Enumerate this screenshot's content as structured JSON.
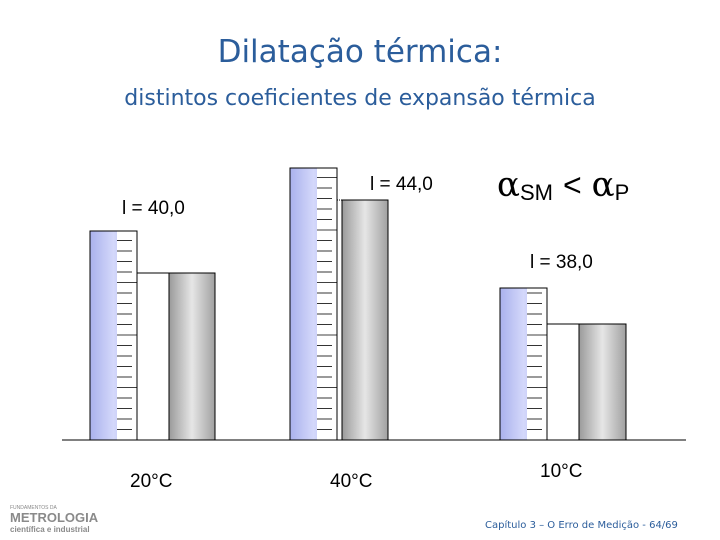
{
  "title": "Dilatação térmica:",
  "subtitle": "distintos coeficientes de expansão térmica",
  "groups": [
    {
      "reading": "l = 40,0",
      "temperature": "20°C"
    },
    {
      "reading": "l = 44,0",
      "temperature": "40°C"
    },
    {
      "reading": "l = 38,0",
      "temperature": "10°C"
    }
  ],
  "comparison": {
    "left_symbol": "α",
    "left_subscript": "SM",
    "operator": "<",
    "right_symbol": "α",
    "right_subscript": "P"
  },
  "logo": {
    "top": "FUNDAMENTOS DA",
    "name": "METROLOGIA",
    "tagline": "científica e industrial"
  },
  "footer": "Capítulo 3 – O Erro de Medição - 64/69"
}
